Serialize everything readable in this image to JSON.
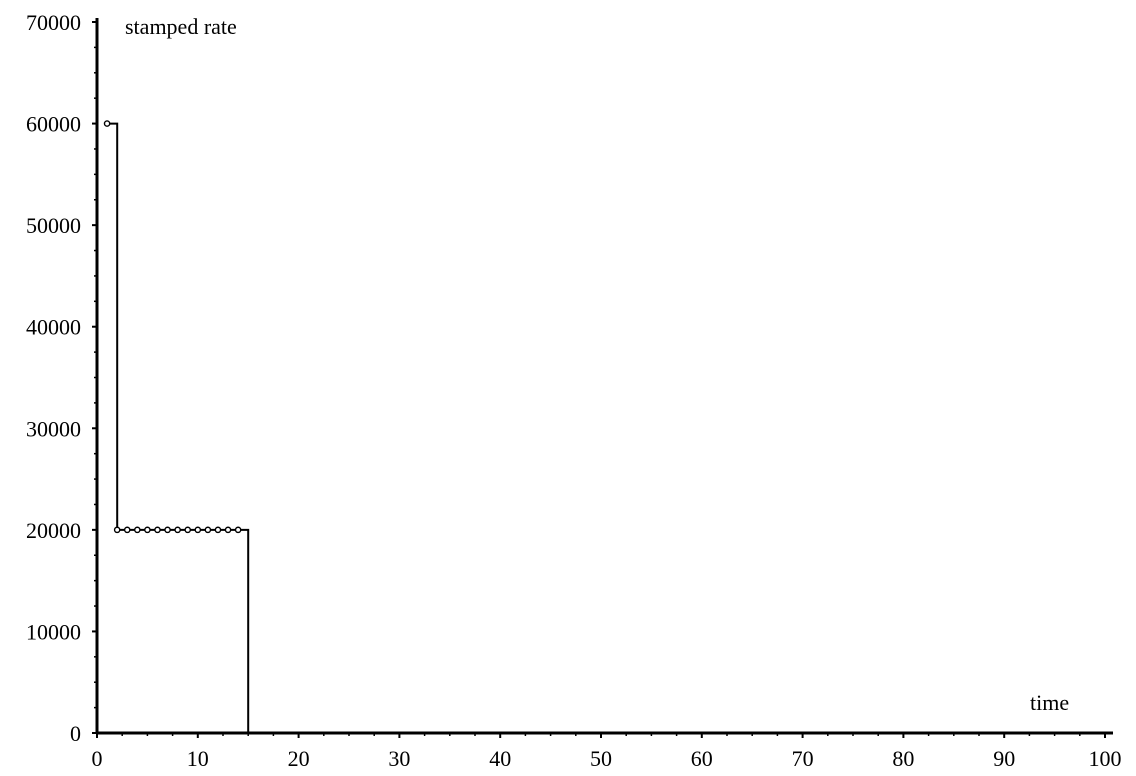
{
  "chart_data": {
    "type": "line",
    "title": "",
    "xlabel": "time",
    "ylabel": "stamped rate",
    "xlim": [
      0,
      100
    ],
    "ylim": [
      0,
      70000
    ],
    "x_ticks": [
      0,
      10,
      20,
      30,
      40,
      50,
      60,
      70,
      80,
      90,
      100
    ],
    "y_ticks": [
      0,
      10000,
      20000,
      30000,
      40000,
      50000,
      60000,
      70000
    ],
    "x_tick_labels": [
      "0",
      "10",
      "20",
      "30",
      "40",
      "50",
      "60",
      "70",
      "80",
      "90",
      "100"
    ],
    "y_tick_labels": [
      "0",
      "10000",
      "20000",
      "30000",
      "40000",
      "50000",
      "60000",
      "70000"
    ],
    "grid": false,
    "legend": "none",
    "series": [
      {
        "style": "step",
        "color": "#000000",
        "x": [
          1,
          2,
          2,
          15,
          15,
          100
        ],
        "y": [
          60000,
          60000,
          20000,
          20000,
          0,
          0
        ]
      }
    ],
    "markers": {
      "shape": "open-circle",
      "x": [
        1,
        2,
        3,
        4,
        5,
        6,
        7,
        8,
        9,
        10,
        11,
        12,
        13,
        14
      ],
      "y": [
        60000,
        20000,
        20000,
        20000,
        20000,
        20000,
        20000,
        20000,
        20000,
        20000,
        20000,
        20000,
        20000,
        20000
      ]
    }
  }
}
